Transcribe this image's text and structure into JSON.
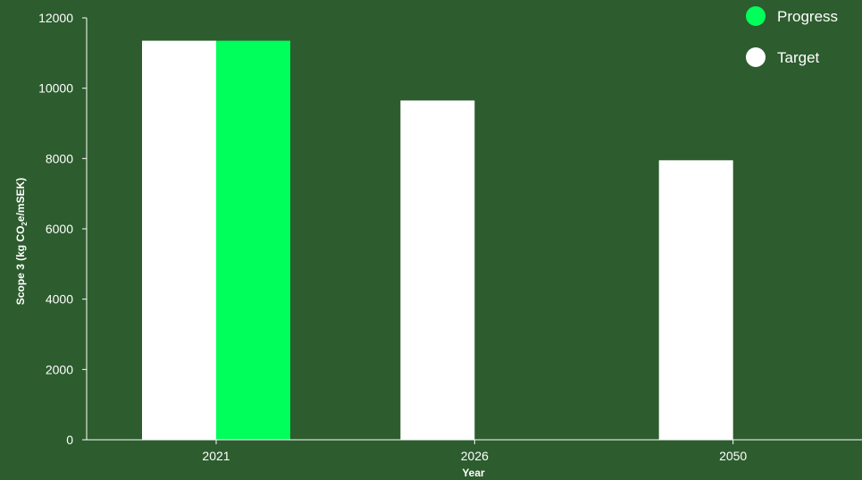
{
  "chart_data": {
    "type": "bar",
    "categories": [
      "2021",
      "2026",
      "2050"
    ],
    "series": [
      {
        "name": "Target",
        "values": [
          11350,
          9650,
          7950
        ],
        "color": "#ffffff"
      },
      {
        "name": "Progress",
        "values": [
          11350,
          null,
          null
        ],
        "color": "#00ff5a"
      }
    ],
    "xlabel": "Year",
    "ylabel": {
      "prefix": "Scope 3 (kg CO",
      "subscript": "2",
      "suffix": "e/mSEK)"
    },
    "ylim": [
      0,
      12000
    ],
    "yticks": [
      0,
      2000,
      4000,
      6000,
      8000,
      10000,
      12000
    ],
    "grid": false,
    "legend_position": "top-right",
    "legend_order": [
      "Progress",
      "Target"
    ]
  },
  "colors": {
    "background": "#2d5c2e",
    "axis": "#ffffff"
  }
}
